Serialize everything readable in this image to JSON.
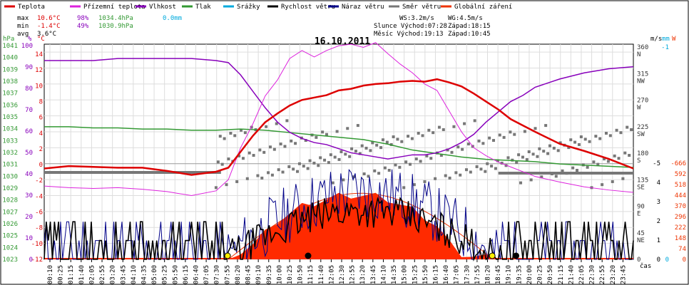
{
  "chart_data": {
    "type": "line",
    "title": "16.10.2011",
    "legend": [
      {
        "name": "Teplota",
        "color": "#dd0000"
      },
      {
        "name": "Přízemní teplota",
        "color": "#dd22dd"
      },
      {
        "name": "Vlhkost",
        "color": "#8800bb"
      },
      {
        "name": "Tlak",
        "color": "#339933"
      },
      {
        "name": "Srážky",
        "color": "#00aadd"
      },
      {
        "name": "Rychlost větru",
        "color": "#000000"
      },
      {
        "name": "Náraz větru",
        "color": "#000088"
      },
      {
        "name": "Směr větru",
        "color": "#777777"
      },
      {
        "name": "Globální záření",
        "color": "#ee3300"
      }
    ],
    "stats": {
      "max": {
        "label": "max",
        "temp": "10.6°C",
        "hum": "98%",
        "press": "1034.4hPa",
        "rain": "0.0mm"
      },
      "min": {
        "label": "min",
        "temp": "-1.4°C",
        "hum": "49%",
        "press": "1030.9hPa"
      },
      "avg": {
        "label": "avg",
        "temp": "3.6°C"
      }
    },
    "info": {
      "ws": "WS:3.2m/s",
      "wg": "WG:4.5m/s",
      "sun": "Slunce Východ:07:28",
      "sun_set": "Západ:18:15",
      "moon": "Měsíc Východ:19:13",
      "moon_set": "Západ:10:45"
    },
    "axes": {
      "hpa": {
        "title": "hPa",
        "ticks": [
          "1041",
          "1040",
          "1039",
          "1038",
          "1037",
          "1036",
          "1035",
          "1034",
          "1033",
          "1032",
          "1031",
          "1030",
          "1029",
          "1028",
          "1027",
          "1026",
          "1025",
          "1024",
          "1023"
        ]
      },
      "pct": {
        "title": "%",
        "ticks": [
          "100",
          "90",
          "80",
          "70",
          "60",
          "50",
          "40",
          "30",
          "20",
          "10",
          "0"
        ]
      },
      "temp": {
        "title": "°C",
        "ticks": [
          "14",
          "12",
          "10",
          "8",
          "6",
          "4",
          "2",
          "0",
          "-2",
          "-4",
          "-6",
          "-8",
          "-10",
          "-12"
        ]
      },
      "ms": {
        "title": "m/s",
        "ticks": [
          "-5",
          "4",
          "3",
          "2",
          "1",
          "0"
        ]
      },
      "mm": {
        "title": "mm",
        "ticks": [
          "-1",
          "0"
        ]
      },
      "w": {
        "title": "W",
        "ticks": [
          "-666",
          "592",
          "518",
          "444",
          "370",
          "296",
          "222",
          "148",
          "74",
          "0"
        ]
      },
      "dir": {
        "ticks": [
          [
            "360",
            "N"
          ],
          [
            "315",
            "NW"
          ],
          [
            "270",
            "W"
          ],
          [
            "225",
            "SW"
          ],
          [
            "180",
            "S"
          ],
          [
            "135",
            "SE"
          ],
          [
            "90",
            "E"
          ],
          [
            "45",
            "NE"
          ],
          [
            "0",
            ""
          ]
        ]
      },
      "x_label": "čas",
      "x_ticks": [
        "00:10",
        "00:25",
        "01:15",
        "01:40",
        "02:05",
        "02:55",
        "03:20",
        "03:45",
        "04:10",
        "04:35",
        "05:00",
        "05:25",
        "05:50",
        "06:15",
        "06:40",
        "07:05",
        "07:30",
        "07:55",
        "08:20",
        "08:45",
        "09:10",
        "09:35",
        "10:00",
        "10:25",
        "10:50",
        "11:15",
        "11:40",
        "12:05",
        "12:30",
        "12:55",
        "13:20",
        "13:45",
        "14:10",
        "14:35",
        "15:00",
        "15:25",
        "15:50",
        "16:15",
        "16:40",
        "17:05",
        "17:30",
        "17:55",
        "18:20",
        "18:45",
        "19:10",
        "19:35",
        "20:00",
        "20:25",
        "20:50",
        "21:15",
        "21:40",
        "22:05",
        "22:30",
        "22:55",
        "23:20",
        "23:45"
      ]
    },
    "series": [
      {
        "name": "Teplota",
        "x_hours": [
          0,
          1,
          2,
          3,
          4,
          5,
          6,
          7,
          7.5,
          8,
          8.5,
          9,
          9.5,
          10,
          10.5,
          11,
          11.5,
          12,
          12.5,
          13,
          13.5,
          14,
          14.5,
          15,
          15.5,
          16,
          16.5,
          17,
          17.5,
          18,
          18.5,
          19,
          19.5,
          20,
          21,
          22,
          23,
          24
        ],
        "values": [
          -0.6,
          -0.3,
          -0.4,
          -0.5,
          -0.5,
          -0.9,
          -1.4,
          -1.0,
          -0.5,
          1.5,
          3.5,
          5.2,
          6.3,
          7.3,
          8.0,
          8.3,
          8.6,
          9.2,
          9.4,
          9.8,
          10.0,
          10.1,
          10.3,
          10.4,
          10.3,
          10.6,
          10.2,
          9.7,
          8.8,
          7.8,
          6.8,
          5.6,
          4.8,
          4.0,
          2.5,
          1.6,
          0.6,
          -0.6
        ]
      },
      {
        "name": "Přízemní teplota",
        "x_hours": [
          0,
          1,
          2,
          3,
          4,
          5,
          6,
          7,
          7.5,
          8,
          8.5,
          9,
          9.5,
          10,
          10.5,
          11,
          11.5,
          12,
          12.5,
          13,
          13.5,
          14,
          14.5,
          15,
          15.5,
          16,
          16.5,
          17,
          17.5,
          18,
          18.5,
          19,
          20,
          21,
          22,
          23,
          24
        ],
        "values": [
          -2.8,
          -3.0,
          -3.1,
          -3.0,
          -3.2,
          -3.5,
          -4.0,
          -3.4,
          -2.0,
          2.0,
          5.0,
          8.5,
          10.5,
          13.2,
          14.2,
          13.4,
          14.2,
          14.8,
          15.0,
          14.6,
          15.2,
          13.8,
          12.5,
          11.4,
          10.0,
          9.2,
          6.6,
          4.0,
          2.0,
          1.0,
          0.2,
          -0.4,
          -1.6,
          -2.3,
          -2.9,
          -3.3,
          -3.6
        ]
      },
      {
        "name": "Vlhkost",
        "x_hours": [
          0,
          1,
          2,
          3,
          4,
          5,
          6,
          7,
          7.5,
          8,
          8.5,
          9,
          9.5,
          10,
          10.5,
          11,
          11.5,
          12,
          12.5,
          13,
          13.5,
          14,
          14.5,
          15,
          15.5,
          16,
          16.5,
          17,
          17.5,
          18,
          18.5,
          19,
          19.5,
          20,
          21,
          22,
          23,
          24
        ],
        "values": [
          97,
          97,
          97,
          98,
          98,
          98,
          98,
          97,
          96,
          90,
          82,
          74,
          67,
          62,
          59,
          57,
          56,
          54,
          52,
          51,
          50,
          49,
          50,
          51,
          51,
          52,
          54,
          57,
          61,
          67,
          72,
          77,
          80,
          84,
          88,
          91,
          93,
          94
        ]
      },
      {
        "name": "Tlak",
        "x_hours": [
          0,
          1,
          2,
          3,
          4,
          5,
          6,
          7,
          8,
          9,
          10,
          11,
          12,
          13,
          14,
          15,
          16,
          17,
          18,
          19,
          20,
          21,
          22,
          23,
          24
        ],
        "values": [
          1034.4,
          1034.4,
          1034.3,
          1034.3,
          1034.2,
          1034.2,
          1034.1,
          1034.1,
          1034.2,
          1034.1,
          1033.9,
          1033.7,
          1033.5,
          1033.3,
          1032.9,
          1032.4,
          1032.1,
          1031.8,
          1031.6,
          1031.5,
          1031.4,
          1031.2,
          1031.1,
          1031.0,
          1030.9
        ]
      },
      {
        "name": "Globální záření",
        "x_hours": [
          7.5,
          8,
          8.5,
          9,
          9.5,
          10,
          10.5,
          11,
          11.5,
          12,
          12.5,
          13,
          13.5,
          14,
          14.5,
          15,
          15.5,
          16,
          16.5,
          17,
          17.5,
          18,
          18.3
        ],
        "values": [
          0,
          60,
          120,
          200,
          300,
          360,
          410,
          440,
          470,
          490,
          500,
          500,
          490,
          470,
          430,
          380,
          330,
          260,
          120,
          40,
          20,
          8,
          0
        ]
      }
    ]
  }
}
